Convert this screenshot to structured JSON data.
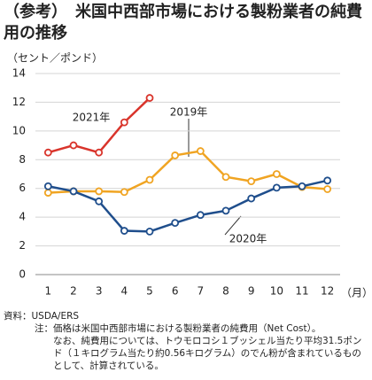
{
  "title": "（参考）　米国中西部市場における製粉業者の純費用の推移",
  "chart_data": {
    "type": "line",
    "y_label": "（セント／ポンド）",
    "x_label": "（月）",
    "categories": [
      "1",
      "2",
      "3",
      "4",
      "5",
      "6",
      "7",
      "8",
      "9",
      "10",
      "11",
      "12"
    ],
    "ylim": [
      0,
      14
    ],
    "yticks": [
      0,
      2,
      4,
      6,
      8,
      10,
      12,
      14
    ],
    "grid": true,
    "series": [
      {
        "name": "2019年",
        "color": "#f0a422",
        "values": [
          5.7,
          5.8,
          5.8,
          5.75,
          6.6,
          8.3,
          8.6,
          6.8,
          6.5,
          7.0,
          6.1,
          5.95
        ]
      },
      {
        "name": "2020年",
        "color": "#1f4e8c",
        "values": [
          6.15,
          5.8,
          5.1,
          3.05,
          3.0,
          3.6,
          4.15,
          4.45,
          5.3,
          6.05,
          6.15,
          6.55
        ]
      },
      {
        "name": "2021年",
        "color": "#d9342b",
        "values": [
          8.5,
          9.0,
          8.5,
          10.6,
          12.3,
          null,
          null,
          null,
          null,
          null,
          null,
          null
        ]
      }
    ]
  },
  "source": "資料：USDA/ERS",
  "note_label": "注：",
  "notes": [
    "価格は米国中西部市場における製粉業者の純費用（Net Cost）。",
    "なお、純費用については、トウモロコシ１ブッシェル当たり平均31.5ポンド（１キログラム当たり約0.56キログラム）のでん粉が含まれているものとして、計算されている。"
  ]
}
